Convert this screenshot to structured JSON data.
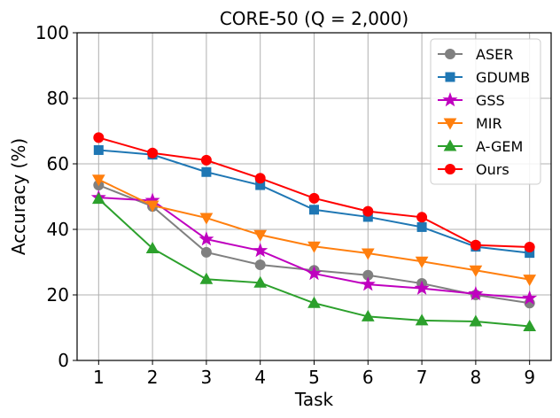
{
  "chart_data": {
    "type": "line",
    "title": "CORE-50 (Q = 2,000)",
    "xlabel": "Task",
    "ylabel": "Accuracy (%)",
    "x": [
      1,
      2,
      3,
      4,
      5,
      6,
      7,
      8,
      9
    ],
    "xticks": [
      "1",
      "2",
      "3",
      "4",
      "5",
      "6",
      "7",
      "8",
      "9"
    ],
    "xlim": [
      0.6,
      9.4
    ],
    "ylim": [
      0,
      100
    ],
    "yticks": [
      0,
      20,
      40,
      60,
      80,
      100
    ],
    "grid": true,
    "legend_position": "top-right",
    "series": [
      {
        "name": "ASER",
        "color": "#808080",
        "marker": "circle",
        "values": [
          53.5,
          47,
          33,
          29.2,
          27.5,
          26,
          23.5,
          20,
          17.5
        ]
      },
      {
        "name": "GDUMB",
        "color": "#1f77b4",
        "marker": "square",
        "values": [
          64.2,
          62.8,
          57.5,
          53.5,
          46,
          43.8,
          40.7,
          34.7,
          32.8
        ]
      },
      {
        "name": "GSS",
        "color": "#bf00bf",
        "marker": "star",
        "values": [
          49.7,
          48.8,
          37,
          33.5,
          26.5,
          23.2,
          22,
          20.3,
          19
        ]
      },
      {
        "name": "MIR",
        "color": "#ff7f0e",
        "marker": "triangle-down",
        "values": [
          55.2,
          47.3,
          43.5,
          38.3,
          34.8,
          32.7,
          30.2,
          27.5,
          24.7
        ]
      },
      {
        "name": "A-GEM",
        "color": "#2ca02c",
        "marker": "triangle-up",
        "values": [
          49.3,
          34.2,
          24.8,
          23.7,
          17.5,
          13.4,
          12.2,
          11.9,
          10.4
        ]
      },
      {
        "name": "Ours",
        "color": "#ff0000",
        "marker": "circle",
        "values": [
          68,
          63.3,
          61.1,
          55.6,
          49.5,
          45.5,
          43.7,
          35.2,
          34.6
        ]
      }
    ]
  }
}
